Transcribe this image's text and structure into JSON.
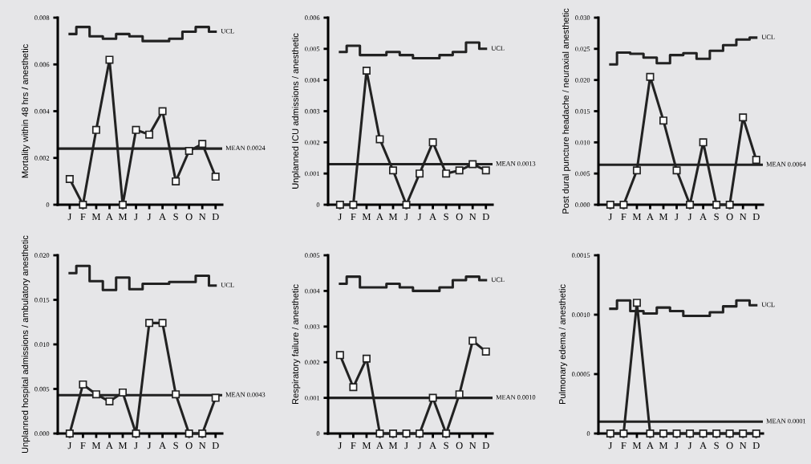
{
  "chart_data": [
    {
      "type": "line",
      "ylabel": "Mortality within 48 hrs / anesthetic",
      "categories": [
        "J",
        "F",
        "M",
        "A",
        "M",
        "J",
        "J",
        "A",
        "S",
        "O",
        "N",
        "D"
      ],
      "ylim": [
        0,
        0.008
      ],
      "yticks": [
        0,
        0.002,
        0.004,
        0.006,
        0.008
      ],
      "series": [
        {
          "color": "#222222",
          "marker": "square",
          "values": [
            0.0011,
            0,
            0.0032,
            0.0062,
            0,
            0.0032,
            0.003,
            0.004,
            0.001,
            0.0023,
            0.0026,
            0.0012
          ]
        },
        {
          "type": "step",
          "name": "UCL",
          "color": "#222222",
          "values": [
            0.0073,
            0.0076,
            0.0072,
            0.0071,
            0.0073,
            0.0072,
            0.007,
            0.007,
            0.0071,
            0.0074,
            0.0076,
            0.0074
          ]
        }
      ],
      "ref_lines": [
        {
          "axis": "y",
          "value": 0.0024,
          "label": "MEAN 0.0024"
        }
      ]
    },
    {
      "type": "line",
      "ylabel": "Unplanned ICU admissions / anesthetic",
      "categories": [
        "J",
        "F",
        "M",
        "A",
        "M",
        "J",
        "J",
        "A",
        "S",
        "O",
        "N",
        "D"
      ],
      "ylim": [
        0,
        0.006
      ],
      "yticks": [
        0,
        0.001,
        0.002,
        0.003,
        0.004,
        0.005,
        0.006
      ],
      "series": [
        {
          "color": "#222222",
          "marker": "square",
          "values": [
            0,
            0,
            0.0043,
            0.0021,
            0.0011,
            0,
            0.001,
            0.002,
            0.001,
            0.0011,
            0.0013,
            0.0011
          ]
        },
        {
          "type": "step",
          "name": "UCL",
          "color": "#222222",
          "values": [
            0.0049,
            0.0051,
            0.0048,
            0.0048,
            0.0049,
            0.0048,
            0.0047,
            0.0047,
            0.0048,
            0.0049,
            0.0052,
            0.005
          ]
        }
      ],
      "ref_lines": [
        {
          "axis": "y",
          "value": 0.0013,
          "label": "MEAN 0.0013"
        }
      ]
    },
    {
      "type": "line",
      "ylabel": "Post dural puncture headache / neuraxial anesthetic",
      "categories": [
        "J",
        "F",
        "M",
        "A",
        "M",
        "J",
        "J",
        "A",
        "S",
        "O",
        "N",
        "D"
      ],
      "ylim": [
        0,
        0.03
      ],
      "yticks": [
        {
          "value": 0,
          "label": "0.000"
        },
        {
          "value": 0.005,
          "label": "0.005"
        },
        {
          "value": 0.01,
          "label": "0.010"
        },
        {
          "value": 0.015,
          "label": "0.015"
        },
        {
          "value": 0.02,
          "label": "0.020"
        },
        {
          "value": 0.025,
          "label": "0.025"
        },
        {
          "value": 0.03,
          "label": "0.030"
        }
      ],
      "series": [
        {
          "color": "#222222",
          "marker": "square",
          "values": [
            0,
            0,
            0.0055,
            0.0205,
            0.0135,
            0.0055,
            0,
            0.01,
            0,
            0,
            0.014,
            0.0072
          ]
        },
        {
          "type": "step",
          "name": "UCL",
          "color": "#222222",
          "values": [
            0.0225,
            0.0244,
            0.0242,
            0.0236,
            0.0227,
            0.024,
            0.0243,
            0.0234,
            0.0247,
            0.0256,
            0.0265,
            0.0268
          ]
        }
      ],
      "ref_lines": [
        {
          "axis": "y",
          "value": 0.0064,
          "label": "MEAN 0.0064"
        }
      ]
    },
    {
      "type": "line",
      "ylabel": "Unplanned hospital admissions / ambulatory anesthetic",
      "categories": [
        "J",
        "F",
        "M",
        "A",
        "M",
        "J",
        "J",
        "A",
        "S",
        "O",
        "N",
        "D"
      ],
      "ylim": [
        0,
        0.02
      ],
      "yticks": [
        {
          "value": 0,
          "label": "0.000"
        },
        {
          "value": 0.005,
          "label": "0.005"
        },
        {
          "value": 0.01,
          "label": "0.010"
        },
        {
          "value": 0.015,
          "label": "0.015"
        },
        {
          "value": 0.02,
          "label": "0.020"
        }
      ],
      "series": [
        {
          "color": "#222222",
          "marker": "square",
          "values": [
            0,
            0.0055,
            0.0044,
            0.0036,
            0.0046,
            0,
            0.0124,
            0.0124,
            0.0044,
            0,
            0,
            0.004
          ]
        },
        {
          "type": "step",
          "name": "UCL",
          "color": "#222222",
          "values": [
            0.018,
            0.0188,
            0.0171,
            0.0161,
            0.0175,
            0.0162,
            0.0168,
            0.0168,
            0.017,
            0.017,
            0.0177,
            0.0166
          ]
        }
      ],
      "ref_lines": [
        {
          "axis": "y",
          "value": 0.0043,
          "label": "MEAN 0.0043"
        }
      ]
    },
    {
      "type": "line",
      "ylabel": "Respiratory failure / anesthetic",
      "categories": [
        "J",
        "F",
        "M",
        "A",
        "M",
        "J",
        "J",
        "A",
        "S",
        "O",
        "N",
        "D"
      ],
      "ylim": [
        0,
        0.005
      ],
      "yticks": [
        0,
        0.001,
        0.002,
        0.003,
        0.004,
        0.005
      ],
      "series": [
        {
          "color": "#222222",
          "marker": "square",
          "values": [
            0.0022,
            0.0013,
            0.0021,
            0,
            0,
            0,
            0,
            0.001,
            0,
            0.0011,
            0.0026,
            0.0023
          ]
        },
        {
          "type": "step",
          "name": "UCL",
          "color": "#222222",
          "values": [
            0.0042,
            0.0044,
            0.0041,
            0.0041,
            0.0042,
            0.0041,
            0.004,
            0.004,
            0.0041,
            0.0043,
            0.0044,
            0.0043
          ]
        }
      ],
      "ref_lines": [
        {
          "axis": "y",
          "value": 0.001,
          "label": "MEAN 0.0010"
        }
      ]
    },
    {
      "type": "line",
      "ylabel": "Pulmonary edema / anesthetic",
      "categories": [
        "J",
        "F",
        "M",
        "A",
        "M",
        "J",
        "J",
        "A",
        "S",
        "O",
        "N",
        "D"
      ],
      "ylim": [
        0,
        0.0015
      ],
      "yticks": [
        0,
        {
          "value": 0.0005,
          "label": "0.0005"
        },
        {
          "value": 0.001,
          "label": "0.0010"
        },
        {
          "value": 0.0015,
          "label": "0.0015"
        }
      ],
      "series": [
        {
          "color": "#222222",
          "marker": "square",
          "values": [
            0,
            0,
            0.0011,
            0,
            0,
            0,
            0,
            0,
            0,
            0,
            0,
            0
          ]
        },
        {
          "type": "step",
          "name": "UCL",
          "color": "#222222",
          "values": [
            0.00105,
            0.00112,
            0.00103,
            0.00101,
            0.00106,
            0.00103,
            0.00099,
            0.00099,
            0.00102,
            0.00107,
            0.00112,
            0.00108
          ]
        }
      ],
      "ref_lines": [
        {
          "axis": "y",
          "value": 0.0001,
          "label": "MEAN 0.0001"
        }
      ]
    }
  ]
}
